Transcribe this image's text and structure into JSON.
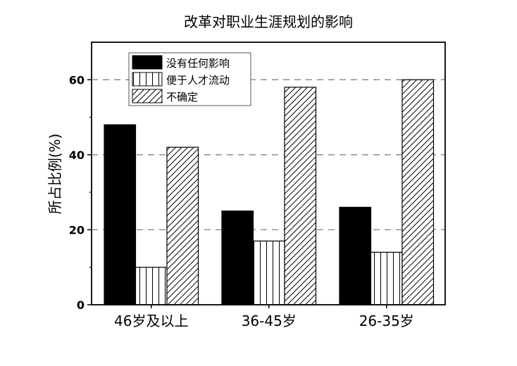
{
  "chart_data": {
    "type": "bar",
    "title": "改革对职业生涯规划的影响",
    "xlabel": "",
    "ylabel": "所占比例(%)",
    "ylim": [
      0,
      70
    ],
    "yticks": [
      0,
      20,
      40,
      60
    ],
    "grid": "dashed horizontal at 20, 40, 60",
    "legend_placement": "top-left",
    "categories": [
      "46岁及以上",
      "36-45岁",
      "26-35岁"
    ],
    "series": [
      {
        "name": "没有任何影响",
        "values": [
          48,
          25,
          26
        ],
        "fill": "solid-black"
      },
      {
        "name": "便于人才流动",
        "values": [
          10,
          17,
          14
        ],
        "fill": "vertical-lines"
      },
      {
        "name": "不确定",
        "values": [
          42,
          58,
          60
        ],
        "fill": "diagonal-hatch"
      }
    ]
  }
}
